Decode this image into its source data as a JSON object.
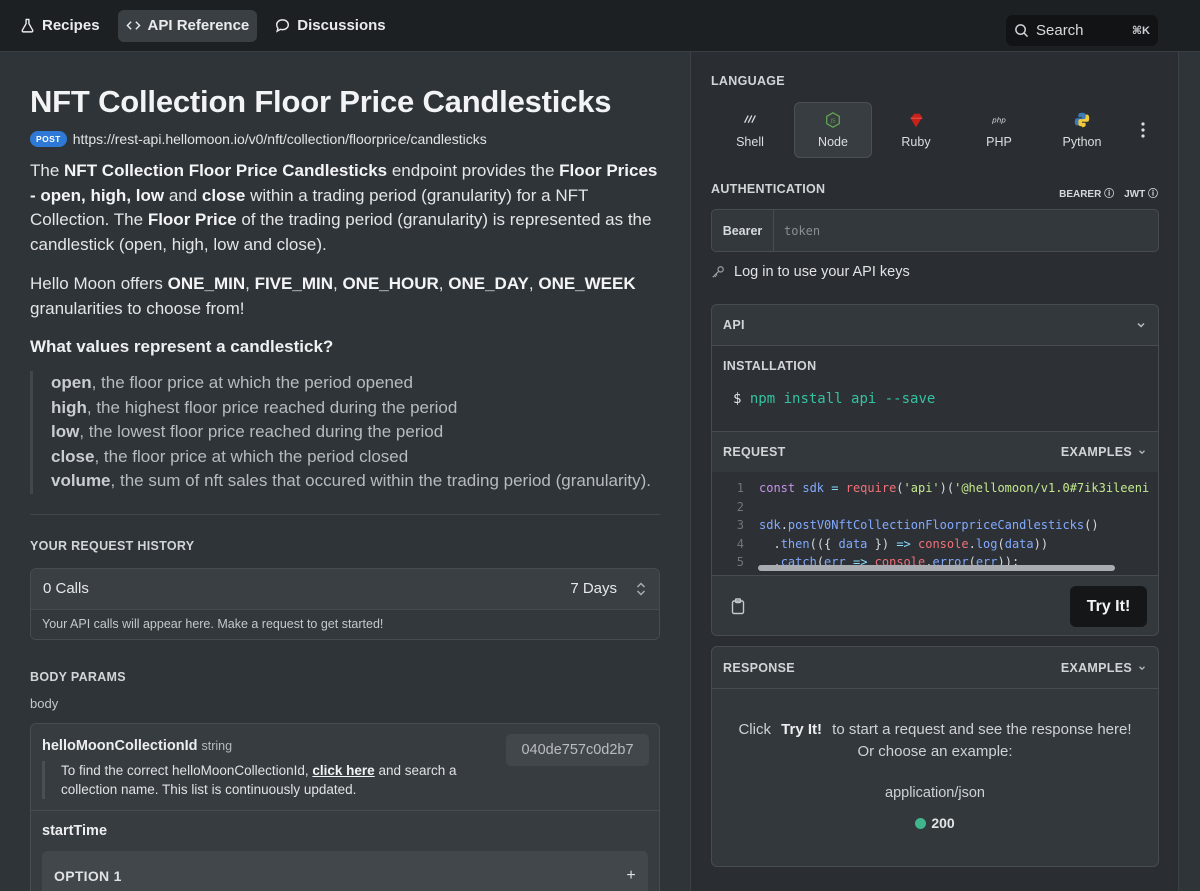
{
  "nav": {
    "tabs": [
      {
        "label": "Recipes",
        "icon": "flask-icon"
      },
      {
        "label": "API Reference",
        "icon": "code-icon"
      },
      {
        "label": "Discussions",
        "icon": "chat-bubble-icon"
      }
    ],
    "search": {
      "placeholder": "Search",
      "shortcut": "⌘K"
    }
  },
  "endpoint": {
    "title": "NFT Collection Floor Price Candlesticks",
    "method": "POST",
    "url": "https://rest-api.hellomoon.io/v0/nft/collection/floorprice/candlesticks"
  },
  "description": {
    "p1": [
      {
        "t": "The ",
        "b": false
      },
      {
        "t": "NFT Collection Floor Price Candlesticks",
        "b": true
      },
      {
        "t": " endpoint provides the ",
        "b": false
      },
      {
        "t": "Floor Prices - open, high, low",
        "b": true
      },
      {
        "t": " and ",
        "b": false
      },
      {
        "t": "close",
        "b": true
      },
      {
        "t": " within a trading period (granularity) for a NFT Collection. The ",
        "b": false
      },
      {
        "t": "Floor Price",
        "b": true
      },
      {
        "t": " of the trading period (granularity) is represented as the candlestick (open, high, low and close).",
        "b": false
      }
    ],
    "p2": [
      {
        "t": "Hello Moon offers ",
        "b": false
      },
      {
        "t": "ONE_MIN",
        "b": true
      },
      {
        "t": ", ",
        "b": false
      },
      {
        "t": "FIVE_MIN",
        "b": true
      },
      {
        "t": ", ",
        "b": false
      },
      {
        "t": "ONE_HOUR",
        "b": true
      },
      {
        "t": ", ",
        "b": false
      },
      {
        "t": "ONE_DAY",
        "b": true
      },
      {
        "t": ", ",
        "b": false
      },
      {
        "t": "ONE_WEEK",
        "b": true
      },
      {
        "t": " granularities to choose from!",
        "b": false
      }
    ],
    "heading": "What values represent a candlestick?",
    "values": [
      {
        "term": "open",
        "text": ", the floor price at which the period opened"
      },
      {
        "term": "high",
        "text": ", the highest floor price reached during the period"
      },
      {
        "term": "low",
        "text": ", the lowest floor price reached during the period"
      },
      {
        "term": "close",
        "text": ", the floor price at which the period closed"
      },
      {
        "term": "volume",
        "text": ", the sum of nft sales that occured within the trading period (granularity)."
      }
    ]
  },
  "history": {
    "label": "YOUR REQUEST HISTORY",
    "calls": "0 Calls",
    "range": "7 Days",
    "empty_text": "Your API calls will appear here. Make a request to get started!"
  },
  "body_params": {
    "label": "BODY PARAMS",
    "sub": "body",
    "param": {
      "name": "helloMoonCollectionId",
      "type": "string",
      "value": "040de757c0d2b7",
      "desc_before": "To find the correct helloMoonCollectionId, ",
      "link": "click here",
      "desc_after": " and search a collection name. This list is continuously updated."
    },
    "start_time": "startTime",
    "option": "OPTION 1",
    "option_add": "+"
  },
  "language": {
    "label": "LANGUAGE",
    "items": [
      {
        "label": "Shell",
        "icon": "shell-icon"
      },
      {
        "label": "Node",
        "icon": "node-icon"
      },
      {
        "label": "Ruby",
        "icon": "ruby-icon"
      },
      {
        "label": "PHP",
        "icon": "php-icon"
      },
      {
        "label": "Python",
        "icon": "python-icon"
      }
    ],
    "selected": "Node"
  },
  "auth": {
    "label": "AUTHENTICATION",
    "bearer_link": "BEARER",
    "jwt_link": "JWT",
    "prefix": "Bearer",
    "placeholder": "token",
    "login_text": "Log in to use your API keys"
  },
  "api": {
    "label": "API",
    "install_label": "INSTALLATION",
    "install_prompt": "$",
    "install_cmd": "npm install api --save",
    "request_label": "REQUEST",
    "examples_label": "EXAMPLES",
    "code_lines": [
      {
        "n": "1",
        "tokens": [
          {
            "t": "const",
            "c": "kw"
          },
          {
            "t": " sdk ",
            "c": "var"
          },
          {
            "t": "=",
            "c": "op"
          },
          {
            "t": " ",
            "c": ""
          },
          {
            "t": "require",
            "c": "fn"
          },
          {
            "t": "(",
            "c": ""
          },
          {
            "t": "'api'",
            "c": "str"
          },
          {
            "t": ")(",
            "c": ""
          },
          {
            "t": "'@hellomoon/v1.0#7ik3ileeni",
            "c": "str"
          }
        ]
      },
      {
        "n": "2",
        "tokens": []
      },
      {
        "n": "3",
        "tokens": [
          {
            "t": "sdk",
            "c": "var"
          },
          {
            "t": ".",
            "c": ""
          },
          {
            "t": "postV0NftCollectionFloorpriceCandlesticks",
            "c": "var"
          },
          {
            "t": "()",
            "c": ""
          }
        ]
      },
      {
        "n": "4",
        "tokens": [
          {
            "t": "  .",
            "c": ""
          },
          {
            "t": "then",
            "c": "var"
          },
          {
            "t": "(({ ",
            "c": ""
          },
          {
            "t": "data",
            "c": "var"
          },
          {
            "t": " }) ",
            "c": ""
          },
          {
            "t": "=>",
            "c": "op"
          },
          {
            "t": " ",
            "c": ""
          },
          {
            "t": "console",
            "c": "fn"
          },
          {
            "t": ".",
            "c": ""
          },
          {
            "t": "log",
            "c": "var"
          },
          {
            "t": "(",
            "c": ""
          },
          {
            "t": "data",
            "c": "var"
          },
          {
            "t": "))",
            "c": ""
          }
        ]
      },
      {
        "n": "5",
        "tokens": [
          {
            "t": "  .",
            "c": ""
          },
          {
            "t": "catch",
            "c": "var"
          },
          {
            "t": "(",
            "c": ""
          },
          {
            "t": "err",
            "c": "var"
          },
          {
            "t": " ",
            "c": ""
          },
          {
            "t": "=>",
            "c": "op"
          },
          {
            "t": " ",
            "c": ""
          },
          {
            "t": "console",
            "c": "fn"
          },
          {
            "t": ".",
            "c": ""
          },
          {
            "t": "error",
            "c": "var"
          },
          {
            "t": "(",
            "c": ""
          },
          {
            "t": "err",
            "c": "var"
          },
          {
            "t": "));",
            "c": ""
          }
        ]
      }
    ],
    "try_label": "Try It!"
  },
  "response": {
    "label": "RESPONSE",
    "examples_label": "EXAMPLES",
    "msg_before": "Click",
    "msg_button": "Try It!",
    "msg_after": "to start a request and see the response here!",
    "msg_line2": "Or choose an example:",
    "content_type": "application/json",
    "status": "200"
  },
  "colors": {
    "accent_post": "#2e79d6",
    "status_ok": "#3fb68b",
    "install_cmd": "#35c1a0"
  }
}
